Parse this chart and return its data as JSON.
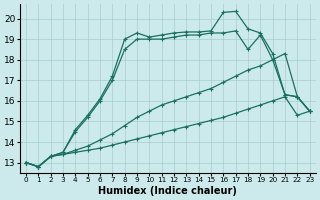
{
  "xlabel": "Humidex (Indice chaleur)",
  "bg_color": "#cceaeb",
  "grid_color": "#aacccc",
  "line_color": "#1a7060",
  "xlim": [
    -0.5,
    23.5
  ],
  "ylim": [
    12.5,
    20.7
  ],
  "yticks": [
    13,
    14,
    15,
    16,
    17,
    18,
    19,
    20
  ],
  "xticks": [
    0,
    1,
    2,
    3,
    4,
    5,
    6,
    7,
    8,
    9,
    10,
    11,
    12,
    13,
    14,
    15,
    16,
    17,
    18,
    19,
    20,
    21,
    22,
    23
  ],
  "lines": [
    {
      "x": [
        0,
        1,
        2,
        3,
        4,
        5,
        6,
        7,
        8,
        9,
        10,
        11,
        12,
        13,
        14,
        15,
        16,
        17,
        18,
        19,
        20,
        21,
        22,
        23
      ],
      "y": [
        13.0,
        12.8,
        13.3,
        13.4,
        13.5,
        13.6,
        13.7,
        13.85,
        14.0,
        14.15,
        14.3,
        14.45,
        14.6,
        14.75,
        14.9,
        15.05,
        15.2,
        15.4,
        15.6,
        15.8,
        16.0,
        16.2,
        15.3,
        15.5
      ]
    },
    {
      "x": [
        0,
        1,
        2,
        3,
        4,
        5,
        6,
        7,
        8,
        9,
        10,
        11,
        12,
        13,
        14,
        15,
        16,
        17,
        18,
        19,
        20,
        21,
        22,
        23
      ],
      "y": [
        13.0,
        12.8,
        13.3,
        13.4,
        13.6,
        13.8,
        14.1,
        14.4,
        14.8,
        15.2,
        15.5,
        15.8,
        16.0,
        16.2,
        16.4,
        16.6,
        16.9,
        17.2,
        17.5,
        17.7,
        18.0,
        18.3,
        16.2,
        15.5
      ]
    },
    {
      "x": [
        0,
        1,
        2,
        3,
        4,
        5,
        6,
        7,
        8,
        9,
        10,
        11,
        12,
        13,
        14,
        15,
        16,
        17,
        18,
        19,
        20,
        21,
        22,
        23
      ],
      "y": [
        13.0,
        12.8,
        13.3,
        13.5,
        14.5,
        15.2,
        16.0,
        17.0,
        18.5,
        19.0,
        19.0,
        19.0,
        19.1,
        19.2,
        19.2,
        19.3,
        19.3,
        19.4,
        18.5,
        19.2,
        18.0,
        16.3,
        16.2,
        15.5
      ]
    },
    {
      "x": [
        0,
        1,
        2,
        3,
        4,
        5,
        6,
        7,
        8,
        9,
        10,
        11,
        12,
        13,
        14,
        15,
        16,
        17,
        18,
        19,
        20,
        21,
        22,
        23
      ],
      "y": [
        13.0,
        12.8,
        13.3,
        13.5,
        14.6,
        15.3,
        16.1,
        17.2,
        19.0,
        19.3,
        19.1,
        19.2,
        19.3,
        19.35,
        19.35,
        19.4,
        20.3,
        20.35,
        19.5,
        19.3,
        18.3,
        16.3,
        16.2,
        15.5
      ]
    }
  ]
}
